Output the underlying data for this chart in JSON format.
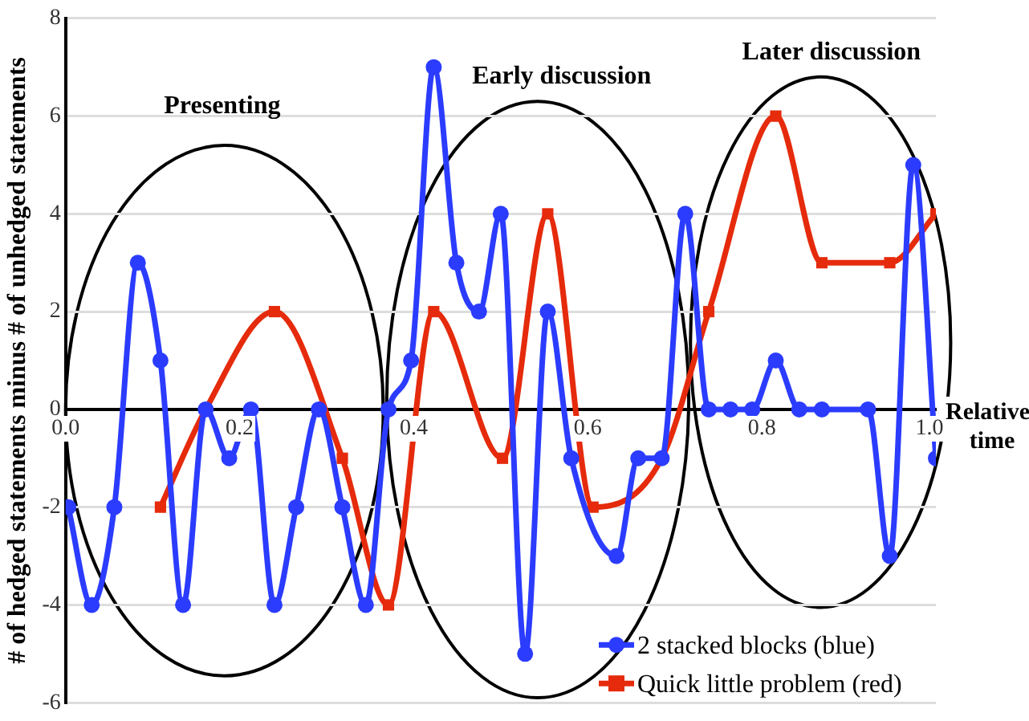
{
  "chart_data": {
    "type": "line",
    "ylabel": "# of hedged statements minus # of unhedged statements",
    "xlabel": "Relative time",
    "xlim": [
      0,
      1
    ],
    "xticks": [
      {
        "value": 0,
        "label": "0.0"
      },
      {
        "value": 0.2,
        "label": "0.2"
      },
      {
        "value": 0.4,
        "label": "0.4"
      },
      {
        "value": 0.6,
        "label": "0.6"
      },
      {
        "value": 0.8,
        "label": "0.8"
      },
      {
        "value": 1,
        "label": "1.0"
      }
    ],
    "ylim": [
      -6,
      8
    ],
    "yticks": [
      -6,
      -4,
      -2,
      0,
      2,
      4,
      6,
      8
    ],
    "grid": "y",
    "legend": "bottom right",
    "line_style": "solid",
    "annotations": [
      "Presenting",
      "Early discussion",
      "Later discussion"
    ],
    "series": [
      {
        "name": "2 stacked blocks (blue)",
        "color": "#2b3cff",
        "marker": "circle",
        "x": [
          0.003,
          0.03,
          0.056,
          0.083,
          0.109,
          0.135,
          0.161,
          0.188,
          0.213,
          0.24,
          0.265,
          0.291,
          0.318,
          0.345,
          0.371,
          0.397,
          0.423,
          0.449,
          0.475,
          0.5,
          0.528,
          0.554,
          0.581,
          0.633,
          0.658,
          0.685,
          0.712,
          0.739,
          0.764,
          0.789,
          0.816,
          0.843,
          0.869,
          0.922,
          0.947,
          0.974,
          1.0
        ],
        "values": [
          -2,
          -4,
          -2,
          3,
          1,
          -4,
          0,
          -1,
          0,
          -4,
          -2,
          0,
          -2,
          -4,
          0,
          1,
          7,
          3,
          2,
          4,
          -5,
          2,
          -1,
          -3,
          -1,
          -1,
          4,
          0,
          0,
          0,
          1,
          0,
          0,
          0,
          -3,
          5,
          -1
        ]
      },
      {
        "name": "Quick little problem (red)",
        "color": "#e52b0c",
        "marker": "square",
        "x": [
          0.109,
          0.161,
          0.24,
          0.318,
          0.371,
          0.423,
          0.502,
          0.554,
          0.606,
          0.685,
          0.739,
          0.816,
          0.869,
          0.947,
          1.0
        ],
        "values": [
          -2,
          0,
          2,
          -1,
          -4,
          2,
          -1,
          4,
          -2,
          -1,
          2,
          6,
          3,
          3,
          4
        ]
      }
    ]
  }
}
